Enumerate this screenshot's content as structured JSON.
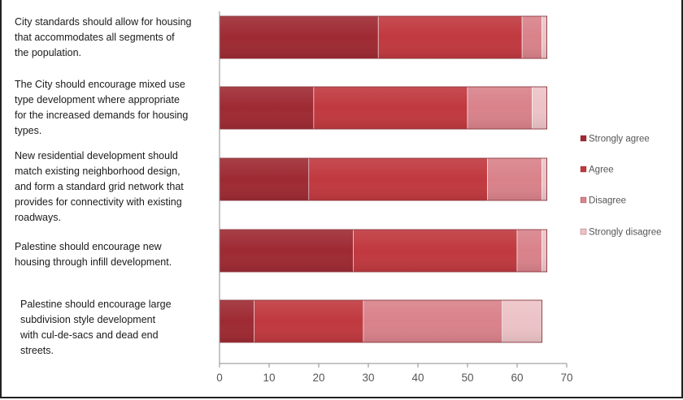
{
  "chart_data": {
    "type": "bar",
    "orientation": "horizontal",
    "stacked": true,
    "categories": [
      [
        "City standards should allow for housing",
        "that accommodates all segments of",
        "the population."
      ],
      [
        "The City should encourage mixed use",
        "type development where appropriate",
        "for the increased demands for housing",
        "types."
      ],
      [
        "New residential development should",
        "match existing neighborhood design,",
        "and form a standard grid network that",
        "provides for connectivity with existing",
        "roadways."
      ],
      [
        "Palestine should encourage new",
        "housing through infill development."
      ],
      [
        "Palestine should encourage large",
        "subdivision style development",
        "with cul-de-sacs and dead end",
        "streets."
      ]
    ],
    "series": [
      {
        "name": "Strongly agree",
        "color": "#9e2a33",
        "values": [
          32,
          19,
          18,
          27,
          7
        ]
      },
      {
        "name": "Agree",
        "color": "#c0393f",
        "values": [
          29,
          31,
          36,
          33,
          22
        ]
      },
      {
        "name": "Disagree",
        "color": "#d9828a",
        "values": [
          4,
          13,
          11,
          5,
          28
        ]
      },
      {
        "name": "Strongly disagree",
        "color": "#ecc3c6",
        "values": [
          1,
          3,
          1,
          1,
          8
        ]
      }
    ],
    "xlim": [
      0,
      70
    ],
    "xticks": [
      0,
      10,
      20,
      30,
      40,
      50,
      60,
      70
    ],
    "legend_position": "right",
    "grid": false
  }
}
